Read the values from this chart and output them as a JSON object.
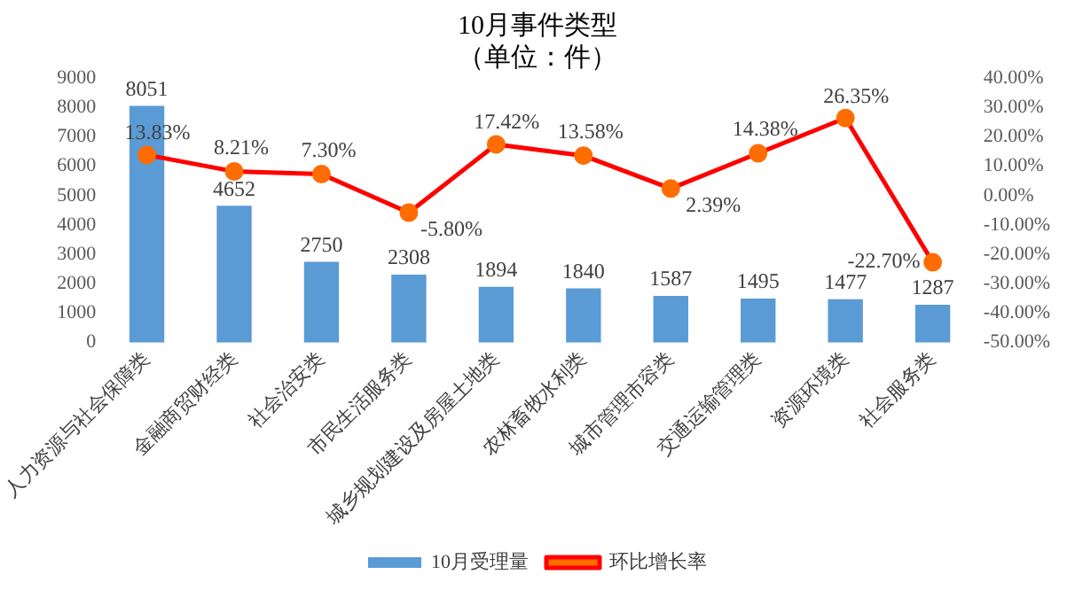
{
  "chart_data": {
    "type": "bar",
    "title": "10月事件类型",
    "subtitle": "（单位：件）",
    "categories": [
      "人力资源与社会保障类",
      "金融商贸财经类",
      "社会治安类",
      "市民生活服务类",
      "城乡规划建设及房屋土地类",
      "农林畜牧水利类",
      "城市管理市容类",
      "交通运输管理类",
      "资源环境类",
      "社会服务类"
    ],
    "series": [
      {
        "name": "10月受理量",
        "color": "#5b9bd5",
        "values": [
          8051,
          4652,
          2750,
          2308,
          1894,
          1840,
          1587,
          1495,
          1477,
          1287
        ],
        "data_labels": true
      },
      {
        "name": "环比增长率",
        "type": "line",
        "axis": "y2",
        "color": "#ff0000",
        "marker": "circle",
        "values": [
          13.83,
          8.21,
          7.3,
          -5.8,
          17.42,
          13.58,
          2.39,
          14.38,
          26.35,
          -22.7
        ],
        "value_labels": [
          "13.83%",
          "8.21%",
          "7.30%",
          "-5.80%",
          "17.42%",
          "13.58%",
          "2.39%",
          "14.38%",
          "26.35%",
          "-22.70%"
        ]
      }
    ],
    "ylim": [
      0,
      9000
    ],
    "yticks": [
      0,
      1000,
      2000,
      3000,
      4000,
      5000,
      6000,
      7000,
      8000,
      9000
    ],
    "y2lim": [
      -50,
      40
    ],
    "y2ticks": [
      {
        "value": -50,
        "label": "-50.00%"
      },
      {
        "value": -40,
        "label": "-40.00%"
      },
      {
        "value": -30,
        "label": "-30.00%"
      },
      {
        "value": -20,
        "label": "-20.00%"
      },
      {
        "value": -10,
        "label": "-10.00%"
      },
      {
        "value": 0,
        "label": "0.00%"
      },
      {
        "value": 10,
        "label": "10.00%"
      },
      {
        "value": 20,
        "label": "20.00%"
      },
      {
        "value": 30,
        "label": "30.00%"
      },
      {
        "value": 40,
        "label": "40.00%"
      }
    ],
    "grid": false,
    "legend": "bottom"
  }
}
